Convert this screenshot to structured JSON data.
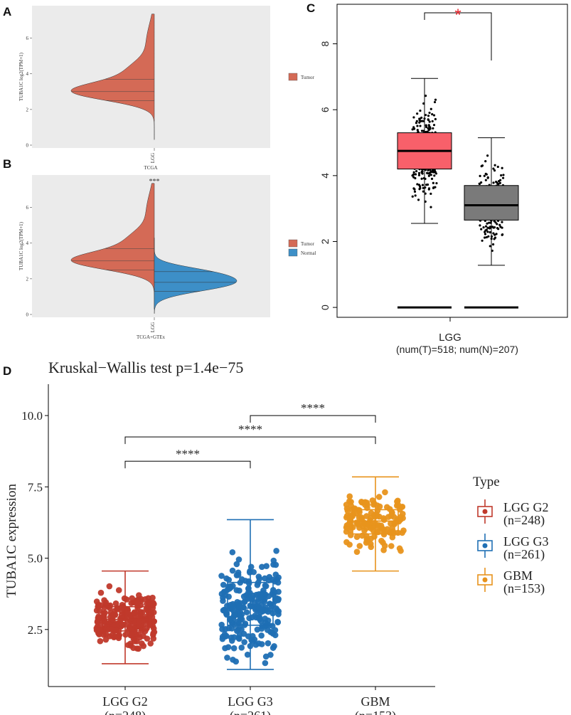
{
  "panels": {
    "A": {
      "label": "A",
      "chart_data": {
        "type": "violin",
        "ylabel": "TUBA1C  log2(TPM+1)",
        "xlabel": "TCGA",
        "categories": [
          "LGG"
        ],
        "yticks": [
          "0",
          "2",
          "4",
          "6"
        ],
        "ylim": [
          0,
          7.5
        ],
        "legend": [
          "Tumor"
        ],
        "quartiles": [
          2.5,
          3.0,
          3.7
        ]
      }
    },
    "B": {
      "label": "B",
      "chart_data": {
        "type": "split-violin",
        "ylabel": "TUBA1C  log2(TPM+1)",
        "xlabel": "TCGA+GTEx",
        "categories": [
          "LGG"
        ],
        "yticks": [
          "0",
          "2",
          "4",
          "6"
        ],
        "ylim": [
          0,
          7.5
        ],
        "significance": "***",
        "legend": [
          "Tumor",
          "Normal"
        ],
        "tumor_quartiles": [
          2.5,
          3.0,
          3.7
        ],
        "normal_quartiles": [
          1.3,
          1.8,
          2.4
        ]
      }
    },
    "C": {
      "label": "C",
      "chart_data": {
        "type": "box",
        "yticks": [
          "0",
          "2",
          "4",
          "6",
          "8"
        ],
        "ylim": [
          -0.3,
          9.2
        ],
        "category": "LGG",
        "sublabel": "(num(T)=518; num(N)=207)",
        "significance": "*",
        "boxes": [
          {
            "name": "Tumor",
            "n": 518,
            "whisker_low": 2.55,
            "q1": 4.2,
            "median": 4.75,
            "q3": 5.3,
            "whisker_high": 6.95,
            "zero_line": 0,
            "color": "#F8606A"
          },
          {
            "name": "Normal",
            "n": 207,
            "whisker_low": 1.28,
            "q1": 2.65,
            "median": 3.1,
            "q3": 3.7,
            "whisker_high": 5.15,
            "zero_line": 0,
            "color": "#7A7A7A"
          }
        ]
      }
    },
    "D": {
      "label": "D",
      "chart_data": {
        "type": "box",
        "title": "Kruskal−Wallis test p=1.4e−75",
        "ylabel": "TUBA1C expression",
        "yticks": [
          "2.5",
          "5.0",
          "7.5",
          "10.0"
        ],
        "ylim": [
          0.5,
          11.1
        ],
        "legend_title": "Type",
        "categories": [
          "LGG G2",
          "LGG G3",
          "GBM"
        ],
        "ns": [
          "(n=248)",
          "(n=261)",
          "(n=153)"
        ],
        "comparisons": [
          {
            "groups": [
              1,
              2
            ],
            "label": "****",
            "y": 10.0
          },
          {
            "groups": [
              0,
              2
            ],
            "label": "****",
            "y": 9.25
          },
          {
            "groups": [
              0,
              1
            ],
            "label": "****",
            "y": 8.4
          }
        ],
        "boxes": [
          {
            "name": "LGG G2",
            "whisker_low": 1.3,
            "q1": 2.45,
            "median": 2.85,
            "q3": 3.3,
            "whisker_high": 4.55,
            "color": "#C0392B"
          },
          {
            "name": "LGG G3",
            "whisker_low": 1.1,
            "q1": 2.65,
            "median": 3.25,
            "q3": 4.15,
            "whisker_high": 6.35,
            "color": "#1F6FB4"
          },
          {
            "name": "GBM",
            "whisker_low": 4.55,
            "q1": 5.85,
            "median": 6.3,
            "q3": 6.7,
            "whisker_high": 7.85,
            "color": "#E8931C"
          }
        ]
      }
    }
  }
}
